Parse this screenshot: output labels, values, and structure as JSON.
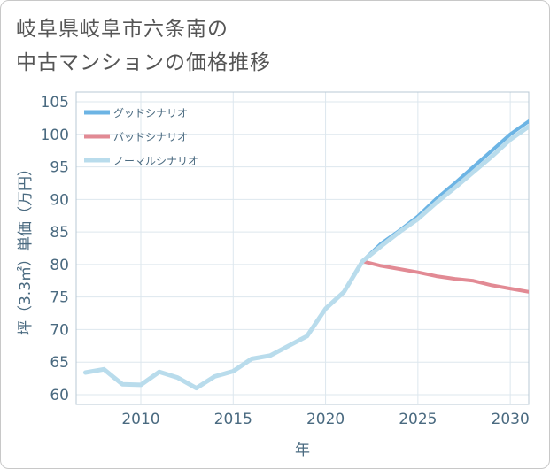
{
  "title": {
    "line1": "岐阜県岐阜市六条南の",
    "line2": "中古マンションの価格推移"
  },
  "chart_data": {
    "type": "line",
    "title": "岐阜県岐阜市六条南の中古マンションの価格推移",
    "xlabel": "年",
    "ylabel": "坪（3.3㎡）単価（万円）",
    "xlim": [
      2006.5,
      2031
    ],
    "ylim": [
      58.5,
      106.5
    ],
    "xticks": [
      2010,
      2015,
      2020,
      2025,
      2030
    ],
    "yticks": [
      60,
      65,
      70,
      75,
      80,
      85,
      90,
      95,
      100,
      105
    ],
    "grid": true,
    "legend_position": "top-left",
    "series": [
      {
        "name": "グッドシナリオ",
        "color": "#6cb4e4",
        "x": [
          2022,
          2023,
          2024,
          2025,
          2026,
          2027,
          2028,
          2029,
          2030,
          2031
        ],
        "y": [
          80.5,
          83.2,
          85.2,
          87.4,
          90.1,
          92.5,
          95.0,
          97.5,
          100.0,
          102.0
        ]
      },
      {
        "name": "バッドシナリオ",
        "color": "#e28a94",
        "x": [
          2022,
          2023,
          2024,
          2025,
          2026,
          2027,
          2028,
          2029,
          2030,
          2031
        ],
        "y": [
          80.5,
          79.8,
          79.3,
          78.8,
          78.2,
          77.8,
          77.5,
          76.8,
          76.3,
          75.8
        ]
      },
      {
        "name": "ノーマルシナリオ",
        "color": "#b9dcec",
        "x": [
          2007,
          2008,
          2009,
          2010,
          2011,
          2012,
          2013,
          2014,
          2015,
          2016,
          2017,
          2018,
          2019,
          2020,
          2021,
          2022,
          2023,
          2024,
          2025,
          2026,
          2027,
          2028,
          2029,
          2030,
          2031
        ],
        "y": [
          63.4,
          63.9,
          61.6,
          61.5,
          63.5,
          62.6,
          61.0,
          62.8,
          63.6,
          65.5,
          66.0,
          67.5,
          69.0,
          73.2,
          75.8,
          80.5,
          82.8,
          85.0,
          87.0,
          89.5,
          91.8,
          94.2,
          96.6,
          99.2,
          101.2
        ]
      }
    ]
  }
}
